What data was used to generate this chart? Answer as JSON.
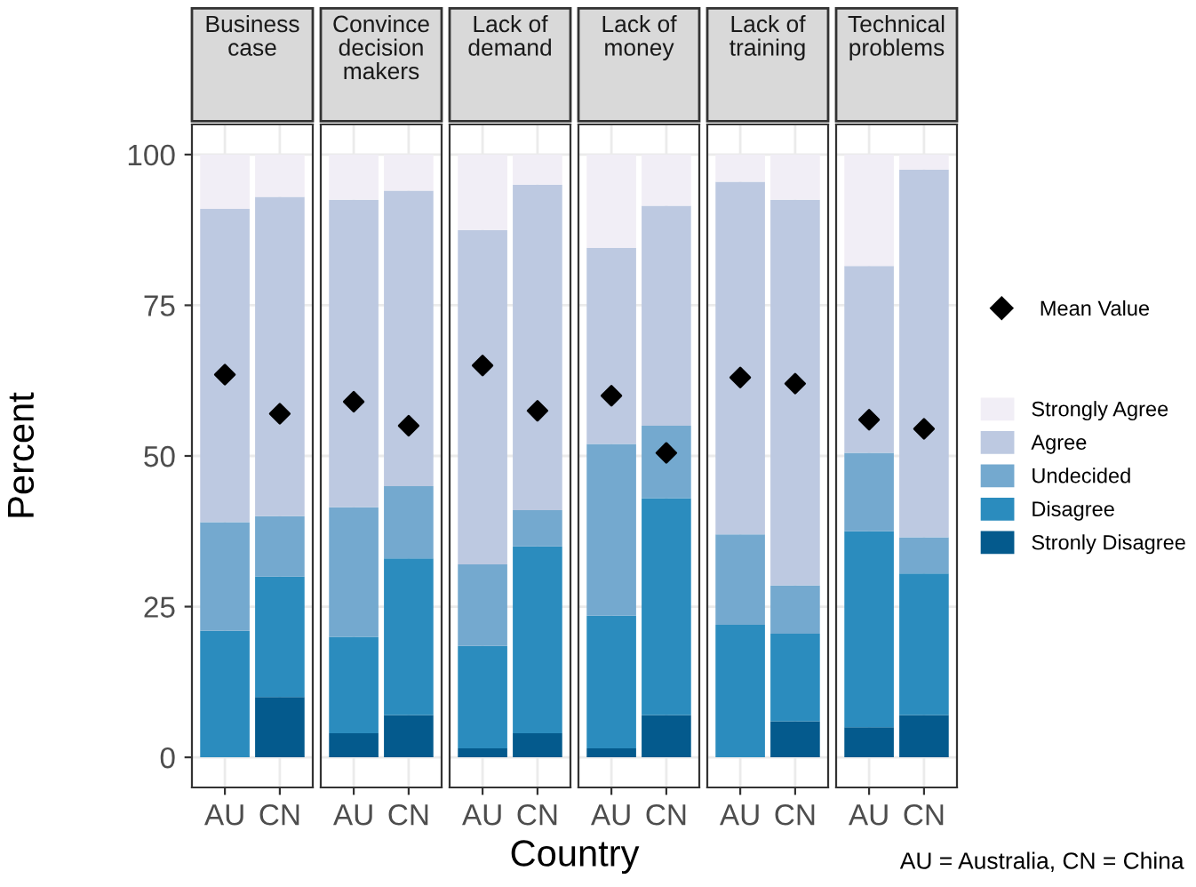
{
  "chart_data": [
    {
      "type": "bar",
      "title": "Business\ncase",
      "ylabel": "Percent",
      "xlabel": "Country",
      "categories": [
        "AU",
        "CN"
      ],
      "stacked": true,
      "ylim": [
        -5,
        105
      ],
      "yticks": [
        0,
        25,
        50,
        75,
        100
      ],
      "grid": true,
      "series": [
        {
          "color": "#045a8d",
          "values": [
            0,
            10
          ]
        },
        {
          "color": "#2b8cbe",
          "values": [
            21,
            20
          ]
        },
        {
          "color": "#74a9cf",
          "values": [
            18,
            10
          ]
        },
        {
          "color": "#bdc9e1",
          "values": [
            52,
            53
          ]
        },
        {
          "color": "#f1eef6",
          "values": [
            9,
            7
          ]
        },
        {
          "type": "scatter",
          "marker": "diamond",
          "color": "#000000",
          "x": [
            "AU",
            "CN"
          ],
          "values": [
            63.5,
            57
          ]
        }
      ]
    },
    {
      "type": "bar",
      "title": "Convince\ndecision\nmakers",
      "categories": [
        "AU",
        "CN"
      ],
      "stacked": true,
      "ylim": [
        -5,
        105
      ],
      "yticks": [
        0,
        25,
        50,
        75,
        100
      ],
      "grid": true,
      "tick_labels": "x",
      "series": [
        {
          "color": "#045a8d",
          "values": [
            4,
            7
          ]
        },
        {
          "color": "#2b8cbe",
          "values": [
            16,
            26
          ]
        },
        {
          "color": "#74a9cf",
          "values": [
            21.5,
            12
          ]
        },
        {
          "color": "#bdc9e1",
          "values": [
            51,
            49
          ]
        },
        {
          "color": "#f1eef6",
          "values": [
            7.5,
            6
          ]
        },
        {
          "type": "scatter",
          "marker": "diamond",
          "color": "#000000",
          "x": [
            "AU",
            "CN"
          ],
          "values": [
            59,
            55
          ]
        }
      ]
    },
    {
      "type": "bar",
      "title": "Lack of\ndemand",
      "categories": [
        "AU",
        "CN"
      ],
      "stacked": true,
      "ylim": [
        -5,
        105
      ],
      "yticks": [
        0,
        25,
        50,
        75,
        100
      ],
      "grid": true,
      "tick_labels": "x",
      "series": [
        {
          "color": "#045a8d",
          "values": [
            1.5,
            4
          ]
        },
        {
          "color": "#2b8cbe",
          "values": [
            17,
            31
          ]
        },
        {
          "color": "#74a9cf",
          "values": [
            13.5,
            6
          ]
        },
        {
          "color": "#bdc9e1",
          "values": [
            55.5,
            54
          ]
        },
        {
          "color": "#f1eef6",
          "values": [
            12.5,
            5
          ]
        },
        {
          "type": "scatter",
          "marker": "diamond",
          "color": "#000000",
          "x": [
            "AU",
            "CN"
          ],
          "values": [
            65,
            57.5
          ]
        }
      ]
    },
    {
      "type": "bar",
      "title": "Lack of\nmoney",
      "categories": [
        "AU",
        "CN"
      ],
      "stacked": true,
      "ylim": [
        -5,
        105
      ],
      "yticks": [
        0,
        25,
        50,
        75,
        100
      ],
      "grid": true,
      "tick_labels": "x",
      "series": [
        {
          "color": "#045a8d",
          "values": [
            1.5,
            7
          ]
        },
        {
          "color": "#2b8cbe",
          "values": [
            22,
            36
          ]
        },
        {
          "color": "#74a9cf",
          "values": [
            28.5,
            12
          ]
        },
        {
          "color": "#bdc9e1",
          "values": [
            32.5,
            36.5
          ]
        },
        {
          "color": "#f1eef6",
          "values": [
            15.5,
            8.5
          ]
        },
        {
          "type": "scatter",
          "marker": "diamond",
          "color": "#000000",
          "x": [
            "AU",
            "CN"
          ],
          "values": [
            60,
            50.5
          ]
        }
      ]
    },
    {
      "type": "bar",
      "title": "Lack of\ntraining",
      "categories": [
        "AU",
        "CN"
      ],
      "stacked": true,
      "ylim": [
        -5,
        105
      ],
      "yticks": [
        0,
        25,
        50,
        75,
        100
      ],
      "grid": true,
      "tick_labels": "x",
      "series": [
        {
          "color": "#045a8d",
          "values": [
            0,
            6
          ]
        },
        {
          "color": "#2b8cbe",
          "values": [
            22,
            14.5
          ]
        },
        {
          "color": "#74a9cf",
          "values": [
            15,
            8
          ]
        },
        {
          "color": "#bdc9e1",
          "values": [
            58.5,
            64
          ]
        },
        {
          "color": "#f1eef6",
          "values": [
            4.5,
            7.5
          ]
        },
        {
          "type": "scatter",
          "marker": "diamond",
          "color": "#000000",
          "x": [
            "AU",
            "CN"
          ],
          "values": [
            63,
            62
          ]
        }
      ]
    },
    {
      "type": "bar",
      "title": "Technical\nproblems",
      "categories": [
        "AU",
        "CN"
      ],
      "stacked": true,
      "ylim": [
        -5,
        105
      ],
      "yticks": [
        0,
        25,
        50,
        75,
        100
      ],
      "grid": true,
      "legend": "right",
      "tick_labels": "x",
      "annotations": [
        "AU = Australia, CN = China"
      ],
      "series": [
        {
          "name": "Stronly Disagree",
          "color": "#045a8d",
          "values": [
            5,
            7
          ]
        },
        {
          "name": "Disagree",
          "color": "#2b8cbe",
          "values": [
            32.5,
            23.5
          ]
        },
        {
          "name": "Undecided",
          "color": "#74a9cf",
          "values": [
            13,
            6
          ]
        },
        {
          "name": "Agree",
          "color": "#bdc9e1",
          "values": [
            31,
            61
          ]
        },
        {
          "name": "Strongly Agree",
          "color": "#f1eef6",
          "values": [
            18.5,
            2.5
          ]
        },
        {
          "name": "Mean Value",
          "type": "scatter",
          "marker": "diamond",
          "color": "#000000",
          "x": [
            "AU",
            "CN"
          ],
          "values": [
            56,
            54.5
          ]
        }
      ]
    }
  ]
}
